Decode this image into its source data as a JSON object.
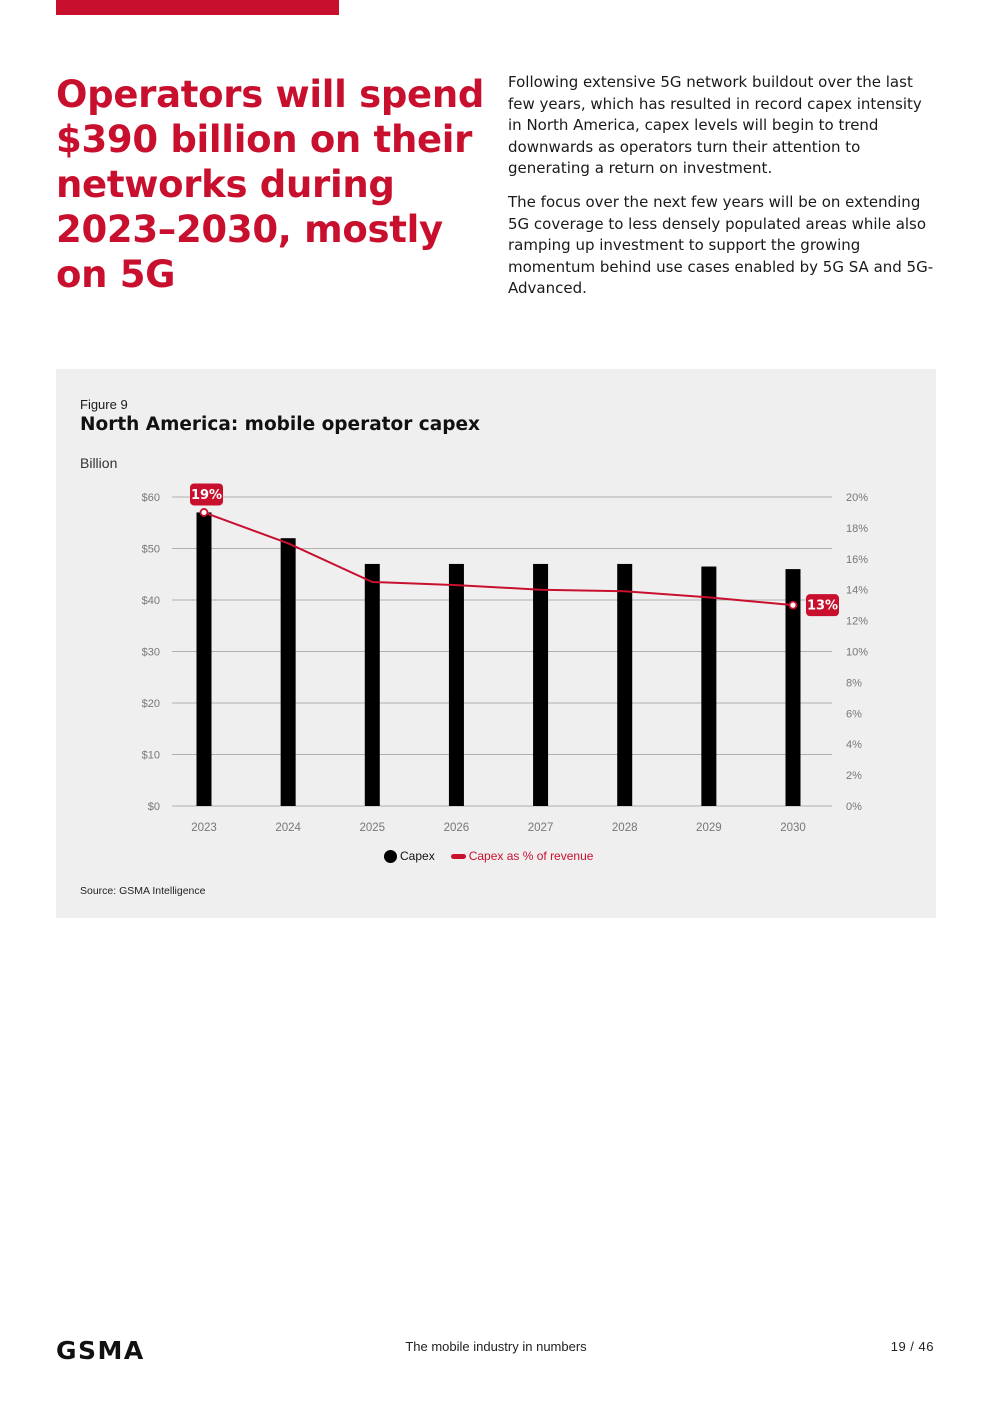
{
  "headline": "Operators will spend $390 billion on their networks during 2023–2030, mostly on 5G",
  "intro": {
    "p1": "Following extensive 5G network buildout over the last few years, which has resulted in record capex intensity in North America, capex levels will begin to trend downwards as operators turn their attention to generating a return on investment.",
    "p2": "The focus over the next few years will be on extending 5G coverage to less densely populated areas while also ramping up investment to support the growing momentum behind use cases enabled by 5G SA and 5G-Advanced."
  },
  "figure": {
    "label": "Figure 9",
    "title": "North America: mobile operator capex",
    "unit": "Billion",
    "source": "Source: GSMA Intelligence"
  },
  "colors": {
    "accent": "#c8102e",
    "bar": "#000000",
    "panel": "#efefef",
    "grid": "#9a9a9a"
  },
  "chart_data": {
    "type": "bar",
    "categories": [
      "2023",
      "2024",
      "2025",
      "2026",
      "2027",
      "2028",
      "2029",
      "2030"
    ],
    "series": [
      {
        "name": "Capex",
        "kind": "bar",
        "axis": "left",
        "values": [
          57,
          52,
          47,
          47,
          47,
          47,
          46.5,
          46
        ]
      },
      {
        "name": "Capex as % of revenue",
        "kind": "line",
        "axis": "right",
        "values": [
          19,
          17,
          14.5,
          14.3,
          14,
          13.9,
          13.5,
          13
        ]
      }
    ],
    "left_axis": {
      "min": 0,
      "max": 60,
      "step": 10,
      "ticks": [
        "$0",
        "$10",
        "$20",
        "$30",
        "$40",
        "$50",
        "$60"
      ]
    },
    "right_axis": {
      "min": 0,
      "max": 20,
      "step": 2,
      "ticks": [
        "0%",
        "2%",
        "4%",
        "6%",
        "8%",
        "10%",
        "12%",
        "14%",
        "16%",
        "18%",
        "20%"
      ]
    },
    "annotations": [
      {
        "category": "2023",
        "label": "19%"
      },
      {
        "category": "2030",
        "label": "13%"
      }
    ],
    "legend": [
      "Capex",
      "Capex as % of revenue"
    ],
    "title": "North America: mobile operator capex",
    "ylabel": "Billion"
  },
  "footer": {
    "logo": "GSMA",
    "center": "The mobile industry in numbers",
    "page": "19 / 46"
  }
}
